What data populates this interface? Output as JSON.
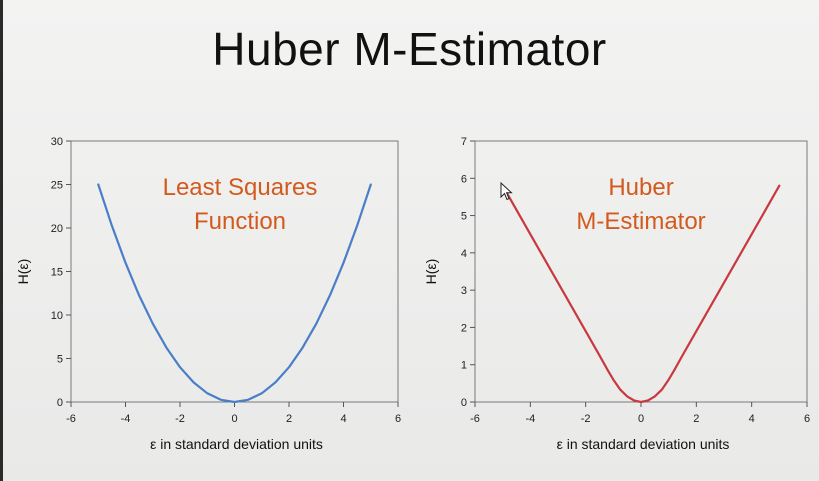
{
  "slide": {
    "title": "Huber M-Estimator"
  },
  "colors": {
    "least_squares": "#4a7ec9",
    "huber": "#c8393f",
    "annotation": "#d35a1e"
  },
  "chart_data": [
    {
      "type": "line",
      "title": "",
      "annotation": [
        "Least Squares",
        "Function"
      ],
      "xlabel": "ε in standard deviation units",
      "ylabel": "H(ε)",
      "xlim": [
        -6,
        6
      ],
      "ylim": [
        0,
        30
      ],
      "xticks": [
        -6,
        -4,
        -2,
        0,
        2,
        4,
        6
      ],
      "yticks": [
        0,
        5,
        10,
        15,
        20,
        25,
        30
      ],
      "grid": false,
      "series": [
        {
          "color": "#4a7ec9",
          "x": [
            -5,
            -4.5,
            -4,
            -3.5,
            -3,
            -2.5,
            -2,
            -1.5,
            -1,
            -0.5,
            0,
            0.5,
            1,
            1.5,
            2,
            2.5,
            3,
            3.5,
            4,
            4.5,
            5
          ],
          "y": [
            25,
            20.25,
            16,
            12.25,
            9,
            6.25,
            4,
            2.25,
            1,
            0.25,
            0,
            0.25,
            1,
            2.25,
            4,
            6.25,
            9,
            12.25,
            16,
            20.25,
            25
          ]
        }
      ]
    },
    {
      "type": "line",
      "title": "",
      "annotation": [
        "Huber",
        "M-Estimator"
      ],
      "xlabel": "ε in standard deviation units",
      "ylabel": "H(ε)",
      "xlim": [
        -6,
        6
      ],
      "ylim": [
        0,
        7
      ],
      "xticks": [
        -6,
        -4,
        -2,
        0,
        2,
        4,
        6
      ],
      "yticks": [
        0,
        1,
        2,
        3,
        4,
        5,
        6,
        7
      ],
      "grid": false,
      "series": [
        {
          "color": "#c8393f",
          "x": [
            -5,
            -4,
            -3,
            -2,
            -1.5,
            -1.2,
            -1,
            -0.75,
            -0.5,
            -0.25,
            0,
            0.25,
            0.5,
            0.75,
            1,
            1.2,
            1.5,
            2,
            3,
            4,
            5
          ],
          "y": [
            5.8,
            4.5,
            3.2,
            1.9,
            1.25,
            0.85,
            0.6,
            0.33,
            0.15,
            0.04,
            0,
            0.04,
            0.15,
            0.33,
            0.6,
            0.85,
            1.25,
            1.9,
            3.2,
            4.5,
            5.8
          ]
        }
      ]
    }
  ]
}
